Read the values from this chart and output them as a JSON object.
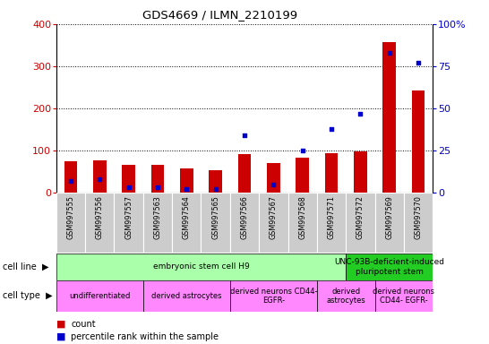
{
  "title": "GDS4669 / ILMN_2210199",
  "samples": [
    "GSM997555",
    "GSM997556",
    "GSM997557",
    "GSM997563",
    "GSM997564",
    "GSM997565",
    "GSM997566",
    "GSM997567",
    "GSM997568",
    "GSM997571",
    "GSM997572",
    "GSM997569",
    "GSM997570"
  ],
  "count": [
    75,
    77,
    67,
    65,
    57,
    53,
    92,
    71,
    82,
    93,
    97,
    358,
    243
  ],
  "percentile": [
    7,
    8,
    3,
    3,
    2,
    2,
    34,
    5,
    25,
    38,
    47,
    83,
    77
  ],
  "left_ylim": [
    0,
    400
  ],
  "right_ylim": [
    0,
    100
  ],
  "left_yticks": [
    0,
    100,
    200,
    300,
    400
  ],
  "right_yticks": [
    0,
    25,
    50,
    75,
    100
  ],
  "right_yticklabels": [
    "0",
    "25",
    "50",
    "75",
    "100%"
  ],
  "bar_color": "#cc0000",
  "dot_color": "#0000cc",
  "cell_line_groups": [
    {
      "label": "embryonic stem cell H9",
      "start": 0,
      "end": 10,
      "color": "#aaffaa"
    },
    {
      "label": "UNC-93B-deficient-induced\npluripotent stem",
      "start": 10,
      "end": 13,
      "color": "#22cc22"
    }
  ],
  "cell_type_groups": [
    {
      "label": "undifferentiated",
      "start": 0,
      "end": 3,
      "color": "#ff88ff"
    },
    {
      "label": "derived astrocytes",
      "start": 3,
      "end": 6,
      "color": "#ff88ff"
    },
    {
      "label": "derived neurons CD44-\nEGFR-",
      "start": 6,
      "end": 9,
      "color": "#ff88ff"
    },
    {
      "label": "derived\nastrocytes",
      "start": 9,
      "end": 11,
      "color": "#ff88ff"
    },
    {
      "label": "derived neurons\nCD44- EGFR-",
      "start": 11,
      "end": 13,
      "color": "#ff88ff"
    }
  ],
  "label_color_left": "#cc0000",
  "label_color_right": "#0000cc",
  "background_gray": "#cccccc"
}
